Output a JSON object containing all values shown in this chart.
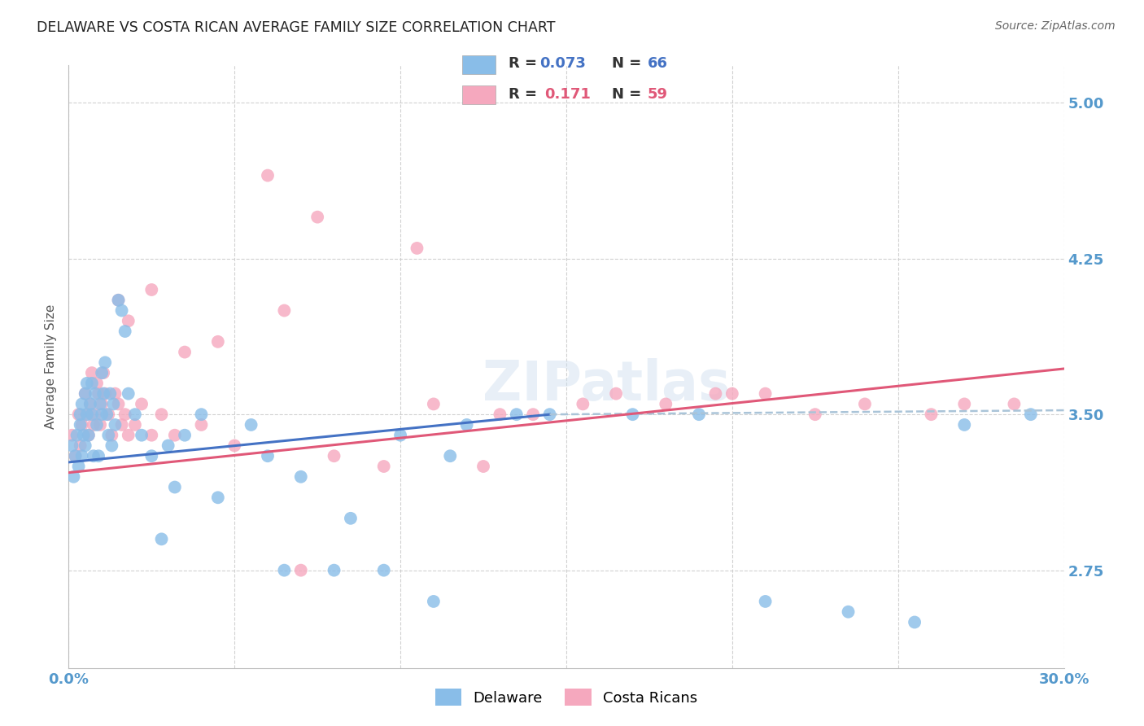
{
  "title": "DELAWARE VS COSTA RICAN AVERAGE FAMILY SIZE CORRELATION CHART",
  "source": "Source: ZipAtlas.com",
  "ylabel": "Average Family Size",
  "xlim": [
    0.0,
    30.0
  ],
  "ylim": [
    2.28,
    5.18
  ],
  "yticks": [
    2.75,
    3.5,
    4.25,
    5.0
  ],
  "xticks": [
    0.0,
    5.0,
    10.0,
    15.0,
    20.0,
    25.0,
    30.0
  ],
  "xtick_labels": [
    "0.0%",
    "",
    "",
    "",
    "",
    "",
    "30.0%"
  ],
  "title_fontsize": 12.5,
  "source_fontsize": 10,
  "ylabel_fontsize": 11,
  "color_delaware": "#89bde8",
  "color_costarica": "#f5a8be",
  "color_delaware_line": "#4472c4",
  "color_costarica_line": "#e05878",
  "color_axis_text": "#5599cc",
  "color_title": "#222222",
  "color_source": "#666666",
  "color_legend_R_blue": "#4472c4",
  "color_legend_R_pink": "#e05878",
  "color_legend_N_blue": "#4472c4",
  "color_legend_N_pink": "#e05878",
  "color_legend_label": "#333333",
  "delaware_x": [
    0.1,
    0.15,
    0.2,
    0.25,
    0.3,
    0.35,
    0.35,
    0.4,
    0.4,
    0.45,
    0.5,
    0.5,
    0.55,
    0.55,
    0.6,
    0.65,
    0.7,
    0.7,
    0.75,
    0.8,
    0.85,
    0.9,
    0.95,
    1.0,
    1.0,
    1.05,
    1.1,
    1.15,
    1.2,
    1.25,
    1.3,
    1.35,
    1.4,
    1.5,
    1.6,
    1.7,
    1.8,
    2.0,
    2.2,
    2.5,
    3.0,
    3.5,
    4.0,
    5.5,
    6.0,
    7.0,
    8.5,
    10.0,
    11.5,
    13.5,
    2.8,
    3.2,
    4.5,
    6.5,
    8.0,
    9.5,
    12.0,
    14.5,
    17.0,
    19.0,
    21.0,
    23.5,
    25.5,
    27.0,
    29.0,
    11.0
  ],
  "delaware_y": [
    3.35,
    3.2,
    3.3,
    3.4,
    3.25,
    3.5,
    3.45,
    3.3,
    3.55,
    3.4,
    3.35,
    3.6,
    3.5,
    3.65,
    3.4,
    3.55,
    3.5,
    3.65,
    3.3,
    3.6,
    3.45,
    3.3,
    3.55,
    3.5,
    3.7,
    3.6,
    3.75,
    3.5,
    3.4,
    3.6,
    3.35,
    3.55,
    3.45,
    4.05,
    4.0,
    3.9,
    3.6,
    3.5,
    3.4,
    3.3,
    3.35,
    3.4,
    3.5,
    3.45,
    3.3,
    3.2,
    3.0,
    3.4,
    3.3,
    3.5,
    2.9,
    3.15,
    3.1,
    2.75,
    2.75,
    2.75,
    3.45,
    3.5,
    3.5,
    3.5,
    2.6,
    2.55,
    2.5,
    3.45,
    3.5,
    2.6
  ],
  "costarica_x": [
    0.1,
    0.2,
    0.3,
    0.35,
    0.4,
    0.5,
    0.55,
    0.6,
    0.65,
    0.7,
    0.75,
    0.8,
    0.85,
    0.9,
    0.95,
    1.0,
    1.05,
    1.1,
    1.2,
    1.3,
    1.4,
    1.5,
    1.6,
    1.7,
    1.8,
    2.0,
    2.2,
    2.5,
    2.8,
    3.2,
    4.0,
    5.0,
    6.5,
    8.0,
    9.5,
    11.0,
    13.0,
    15.5,
    18.0,
    21.0,
    24.0,
    27.0,
    3.5,
    4.5,
    6.0,
    7.5,
    10.5,
    12.5,
    14.0,
    16.5,
    19.5,
    22.5,
    26.0,
    28.5,
    2.5,
    1.5,
    1.8,
    7.0,
    20.0
  ],
  "costarica_y": [
    3.4,
    3.3,
    3.5,
    3.35,
    3.45,
    3.6,
    3.5,
    3.4,
    3.55,
    3.7,
    3.45,
    3.5,
    3.65,
    3.6,
    3.45,
    3.55,
    3.7,
    3.6,
    3.5,
    3.4,
    3.6,
    3.55,
    3.45,
    3.5,
    3.4,
    3.45,
    3.55,
    3.4,
    3.5,
    3.4,
    3.45,
    3.35,
    4.0,
    3.3,
    3.25,
    3.55,
    3.5,
    3.55,
    3.55,
    3.6,
    3.55,
    3.55,
    3.8,
    3.85,
    4.65,
    4.45,
    4.3,
    3.25,
    3.5,
    3.6,
    3.6,
    3.5,
    3.5,
    3.55,
    4.1,
    4.05,
    3.95,
    2.75,
    3.6
  ],
  "delaware_line_x0": 0.0,
  "delaware_line_y0": 3.27,
  "delaware_line_x1": 14.5,
  "delaware_line_y1": 3.5,
  "delaware_dash_x0": 14.5,
  "delaware_dash_y0": 3.5,
  "delaware_dash_x1": 30.0,
  "delaware_dash_y1": 3.52,
  "costarica_line_x0": 0.0,
  "costarica_line_y0": 3.22,
  "costarica_line_x1": 30.0,
  "costarica_line_y1": 3.72
}
